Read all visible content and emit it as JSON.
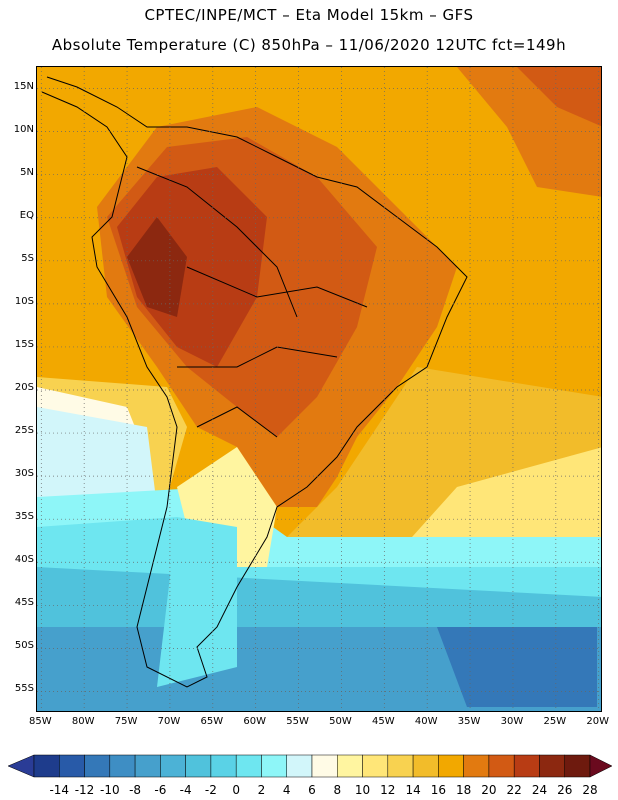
{
  "header": {
    "line1": "CPTEC/INPE/MCT  –  Eta Model 15km – GFS",
    "line2": "Absolute Temperature (C) 850hPa  –  11/06/2020 12UTC fct=149h"
  },
  "map": {
    "lat_ticks": [
      "15N",
      "10N",
      "5N",
      "EQ",
      "5S",
      "10S",
      "15S",
      "20S",
      "25S",
      "30S",
      "35S",
      "40S",
      "45S",
      "50S",
      "55S"
    ],
    "lon_ticks": [
      "85W",
      "80W",
      "75W",
      "70W",
      "65W",
      "60W",
      "55W",
      "50W",
      "45W",
      "40W",
      "35W",
      "30W",
      "25W",
      "20W"
    ],
    "lat_values": [
      15,
      10,
      5,
      0,
      -5,
      -10,
      -15,
      -20,
      -25,
      -30,
      -35,
      -40,
      -45,
      -50,
      -55
    ],
    "lon_values": [
      -85,
      -80,
      -75,
      -70,
      -65,
      -60,
      -55,
      -50,
      -45,
      -40,
      -35,
      -30,
      -25,
      -20
    ],
    "extent": {
      "lon_min": -85.5,
      "lon_max": -19.5,
      "lat_min": -57.5,
      "lat_max": 17.5
    }
  },
  "colorbar": {
    "labels": [
      "-14",
      "-12",
      "-10",
      "-8",
      "-6",
      "-4",
      "-2",
      "0",
      "2",
      "4",
      "6",
      "8",
      "10",
      "12",
      "14",
      "16",
      "18",
      "20",
      "22",
      "24",
      "26",
      "28"
    ],
    "colors": [
      "#1e3c8c",
      "#285aa8",
      "#3478b8",
      "#3e8ec4",
      "#46a0cc",
      "#4cb2d6",
      "#50c2dc",
      "#5ad2e6",
      "#6ee6f0",
      "#8ef6f8",
      "#d2f6fa",
      "#fffbe6",
      "#fff5a0",
      "#ffe678",
      "#f8d250",
      "#f2bc2a",
      "#f2a800",
      "#e27a10",
      "#d25a14",
      "#b83c14",
      "#8c2810",
      "#6e1a0e"
    ],
    "low_color": "#2a3c96",
    "high_color": "#6a0a1e"
  }
}
